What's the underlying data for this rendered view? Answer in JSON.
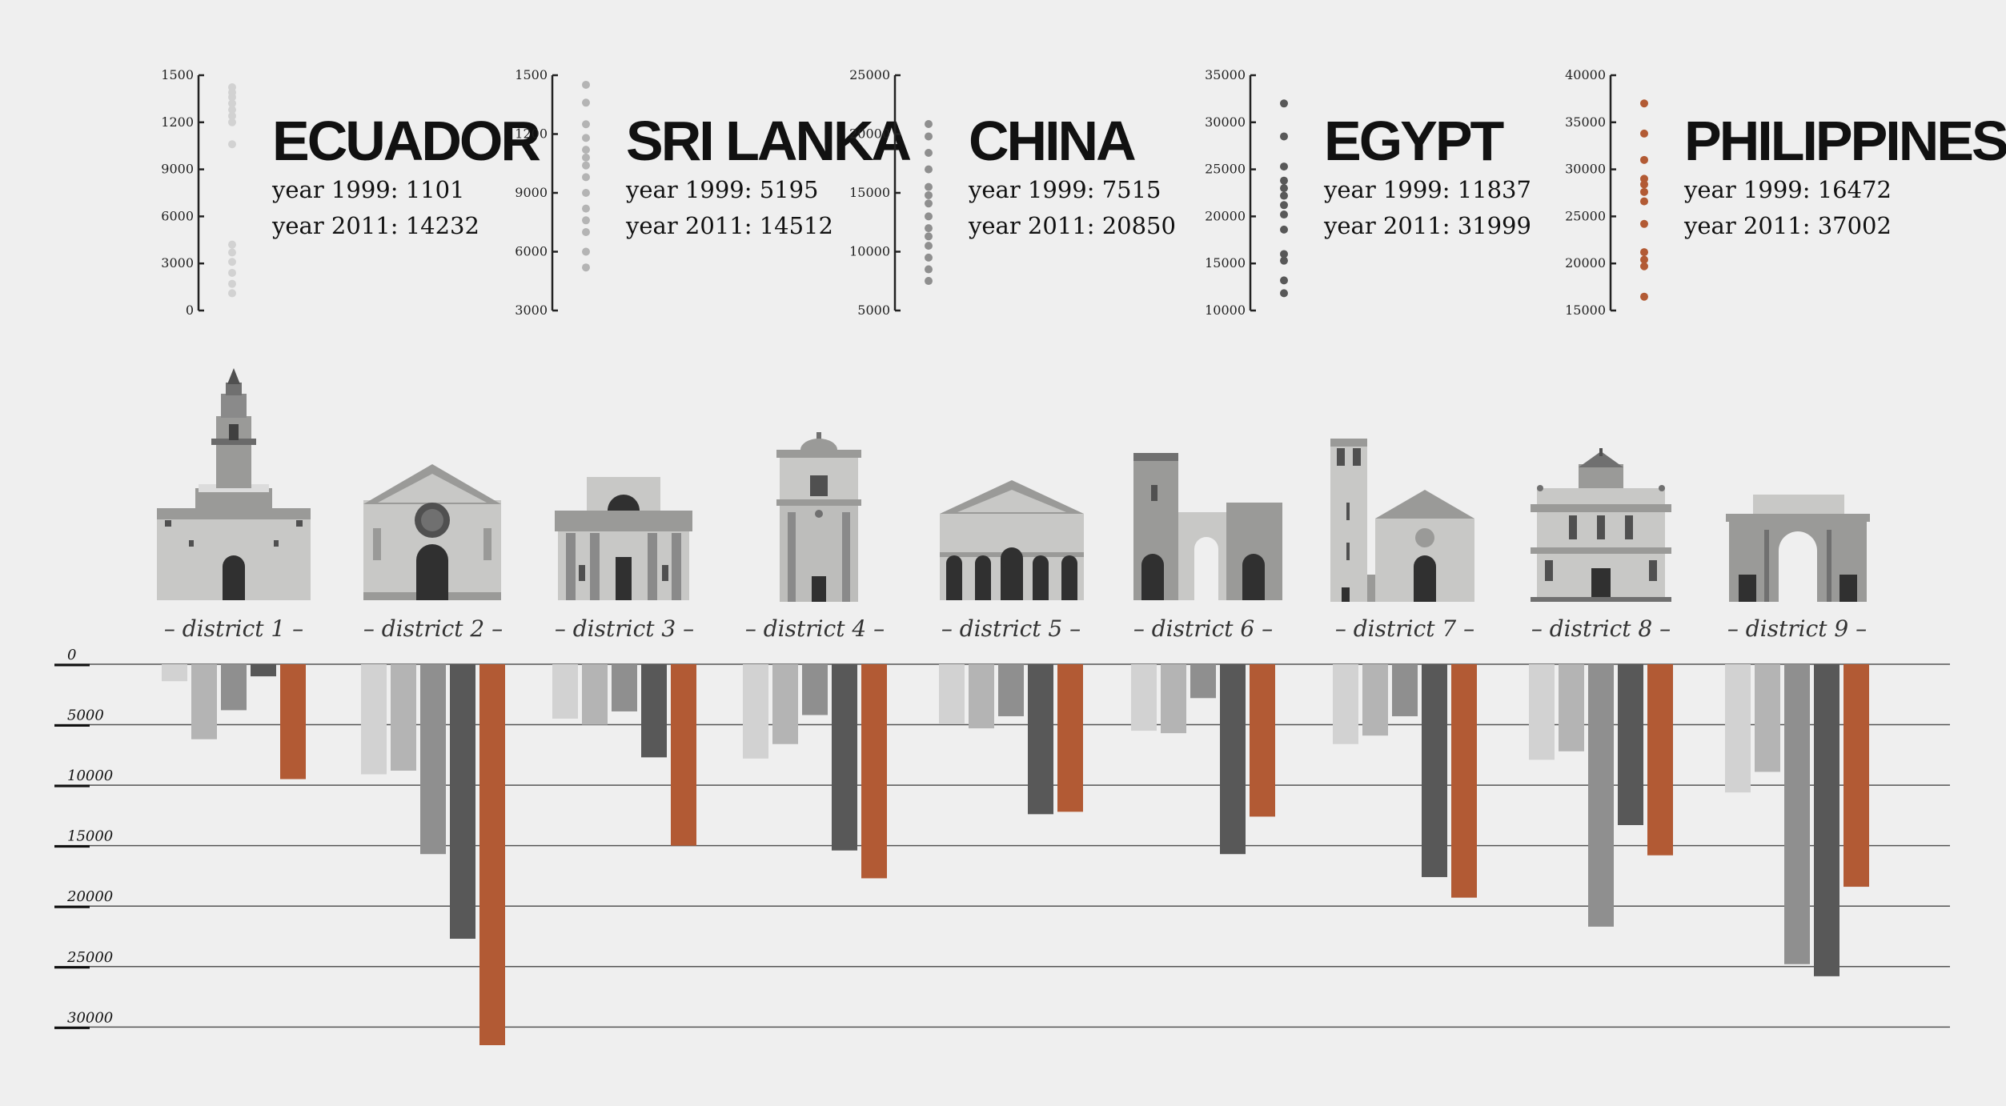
{
  "colors": {
    "background": "#efefef",
    "ecuador": "#d2d2d2",
    "sri_lanka": "#b4b4b4",
    "china": "#8f8f8f",
    "egypt": "#585858",
    "philippines": "#b25a34",
    "building_light": "#c8c8c6",
    "building_mid": "#9a9a98",
    "building_dark": "#505050"
  },
  "chart_data": [
    {
      "type": "scatter",
      "name": "ecuador-panel",
      "country": "ECUADOR",
      "line1": "year 1999: 1101",
      "line2": "year 2011: 14232",
      "ticks": [
        "0",
        "3000",
        "6000",
        "9000",
        "1200",
        "1500"
      ],
      "tick_values": [
        0,
        3000,
        6000,
        9000,
        12000,
        15000
      ],
      "ylim": [
        0,
        15000
      ],
      "values": [
        1101,
        1700,
        2400,
        3100,
        3700,
        4200,
        10600,
        12000,
        12400,
        12800,
        13200,
        13600,
        13900,
        14232
      ],
      "color": "#d2d2d2"
    },
    {
      "type": "scatter",
      "name": "sri-lanka-panel",
      "country": "SRI LANKA",
      "line1": "year 1999: 5195",
      "line2": "year 2011: 14512",
      "ticks": [
        "3000",
        "6000",
        "9000",
        "1200",
        "1500"
      ],
      "tick_values": [
        3000,
        6000,
        9000,
        12000,
        15000
      ],
      "ylim": [
        3000,
        15000
      ],
      "values": [
        5195,
        6000,
        7000,
        7600,
        8200,
        9000,
        9800,
        10400,
        10800,
        11200,
        11800,
        12500,
        13600,
        14512
      ],
      "color": "#b4b4b4"
    },
    {
      "type": "scatter",
      "name": "china-panel",
      "country": "CHINA",
      "line1": "year 1999: 7515",
      "line2": "year 2011: 20850",
      "ticks": [
        "5000",
        "10000",
        "15000",
        "20000",
        "25000"
      ],
      "tick_values": [
        5000,
        10000,
        15000,
        20000,
        25000
      ],
      "ylim": [
        5000,
        25000
      ],
      "values": [
        7515,
        8500,
        9500,
        10500,
        11300,
        12000,
        13000,
        14100,
        14800,
        15500,
        17000,
        18400,
        19800,
        20850
      ],
      "color": "#8f8f8f"
    },
    {
      "type": "scatter",
      "name": "egypt-panel",
      "country": "EGYPT",
      "line1": "year 1999: 11837",
      "line2": "year 2011: 31999",
      "ticks": [
        "10000",
        "15000",
        "20000",
        "25000",
        "30000",
        "35000"
      ],
      "tick_values": [
        10000,
        15000,
        20000,
        25000,
        30000,
        35000
      ],
      "ylim": [
        10000,
        35000
      ],
      "values": [
        11837,
        13200,
        15300,
        16000,
        18600,
        20200,
        21200,
        22200,
        23000,
        23800,
        25300,
        28500,
        31999
      ],
      "color": "#585858"
    },
    {
      "type": "scatter",
      "name": "philippines-panel",
      "country": "PHILIPPINES",
      "line1": "year 1999: 16472",
      "line2": "year 2011: 37002",
      "ticks": [
        "15000",
        "20000",
        "25000",
        "30000",
        "35000",
        "40000"
      ],
      "tick_values": [
        15000,
        20000,
        25000,
        30000,
        35000,
        40000
      ],
      "ylim": [
        15000,
        40000
      ],
      "values": [
        16472,
        19700,
        20400,
        21200,
        24200,
        26600,
        27600,
        28400,
        29000,
        31000,
        33800,
        37002
      ],
      "color": "#b25a34"
    },
    {
      "type": "bar",
      "name": "district-bars",
      "ticks": [
        "0",
        "5000",
        "10000",
        "15000",
        "20000",
        "25000",
        "30000"
      ],
      "tick_values": [
        0,
        5000,
        10000,
        15000,
        20000,
        25000,
        30000
      ],
      "ylim": [
        0,
        31500
      ],
      "categories": [
        "– district 1 –",
        "– district 2 –",
        "– district 3 –",
        "– district 4 –",
        "– district 5 –",
        "– district 6 –",
        "– district 7 –",
        "– district 8 –",
        "– district 9 –"
      ],
      "series": [
        {
          "values": [
            1400,
            9100,
            4500,
            7800,
            4900,
            5500,
            6600,
            7900,
            10600
          ],
          "color": "#d2d2d2"
        },
        {
          "values": [
            6200,
            8800,
            5000,
            6600,
            5300,
            5700,
            5900,
            7200,
            8900
          ],
          "color": "#b4b4b4"
        },
        {
          "values": [
            3800,
            15700,
            3900,
            4200,
            4300,
            2800,
            4300,
            21700,
            24800
          ],
          "color": "#8f8f8f"
        },
        {
          "values": [
            1000,
            22700,
            7700,
            15400,
            12400,
            15700,
            17600,
            13300,
            25800
          ],
          "color": "#585858"
        },
        {
          "values": [
            9500,
            31500,
            15000,
            17700,
            12200,
            12600,
            19300,
            15800,
            18400
          ],
          "color": "#b25a34"
        }
      ]
    }
  ]
}
